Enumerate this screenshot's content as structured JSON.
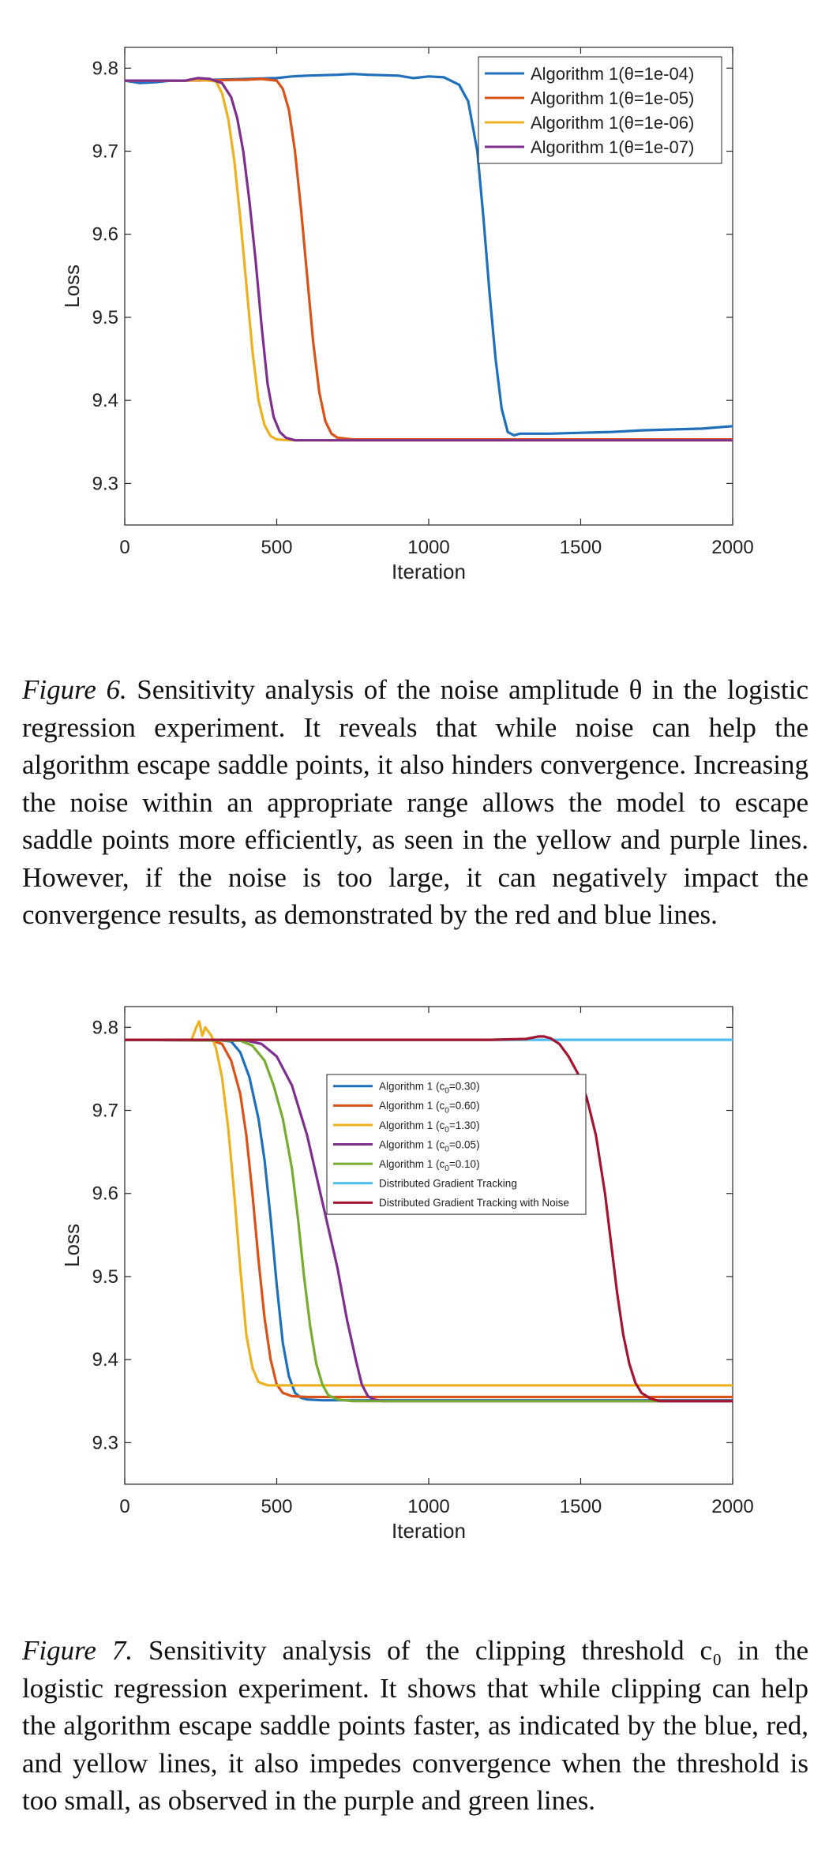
{
  "chart_data": [
    {
      "type": "line",
      "title": "",
      "xlabel": "Iteration",
      "ylabel": "Loss",
      "xlim": [
        0,
        2000
      ],
      "ylim": [
        9.25,
        9.825
      ],
      "xticks": [
        "0",
        "500",
        "1000",
        "1500",
        "2000"
      ],
      "yticks": [
        "9.3",
        "9.4",
        "9.5",
        "9.6",
        "9.7",
        "9.8"
      ],
      "grid": false,
      "legend_position": "top-right",
      "series": [
        {
          "name": "Algorithm 1(θ=1e-04)",
          "color": "#1f6fba",
          "x": [
            0,
            50,
            100,
            150,
            200,
            300,
            400,
            500,
            550,
            600,
            700,
            750,
            800,
            900,
            950,
            1000,
            1050,
            1100,
            1130,
            1160,
            1180,
            1200,
            1220,
            1240,
            1260,
            1280,
            1300,
            1400,
            1500,
            1600,
            1700,
            1800,
            1900,
            2000
          ],
          "y": [
            9.785,
            9.782,
            9.783,
            9.785,
            9.785,
            9.786,
            9.787,
            9.788,
            9.79,
            9.791,
            9.792,
            9.793,
            9.792,
            9.791,
            9.788,
            9.79,
            9.789,
            9.78,
            9.76,
            9.7,
            9.62,
            9.53,
            9.45,
            9.39,
            9.362,
            9.358,
            9.36,
            9.36,
            9.361,
            9.362,
            9.364,
            9.365,
            9.366,
            9.369
          ]
        },
        {
          "name": "Algorithm 1(θ=1e-05)",
          "color": "#d95319",
          "x": [
            0,
            200,
            400,
            450,
            500,
            520,
            540,
            560,
            580,
            600,
            620,
            640,
            660,
            680,
            700,
            750,
            800,
            1000,
            1500,
            2000
          ],
          "y": [
            9.785,
            9.785,
            9.786,
            9.787,
            9.785,
            9.775,
            9.75,
            9.7,
            9.63,
            9.55,
            9.47,
            9.41,
            9.375,
            9.36,
            9.355,
            9.353,
            9.353,
            9.353,
            9.353,
            9.353
          ]
        },
        {
          "name": "Algorithm 1(θ=1e-06)",
          "color": "#edb120",
          "x": [
            0,
            200,
            250,
            300,
            320,
            340,
            360,
            380,
            400,
            420,
            440,
            460,
            480,
            500,
            550,
            600,
            1000,
            2000
          ],
          "y": [
            9.785,
            9.785,
            9.786,
            9.784,
            9.77,
            9.74,
            9.69,
            9.62,
            9.54,
            9.46,
            9.4,
            9.37,
            9.357,
            9.353,
            9.352,
            9.352,
            9.352,
            9.352
          ]
        },
        {
          "name": "Algorithm 1(θ=1e-07)",
          "color": "#7e2f8e",
          "x": [
            0,
            200,
            240,
            280,
            320,
            350,
            370,
            390,
            410,
            430,
            450,
            470,
            490,
            510,
            530,
            560,
            600,
            1000,
            2000
          ],
          "y": [
            9.785,
            9.785,
            9.788,
            9.787,
            9.782,
            9.765,
            9.74,
            9.7,
            9.64,
            9.57,
            9.49,
            9.42,
            9.38,
            9.362,
            9.355,
            9.352,
            9.352,
            9.352,
            9.352
          ]
        }
      ]
    },
    {
      "type": "line",
      "title": "",
      "xlabel": "Iteration",
      "ylabel": "Loss",
      "xlim": [
        0,
        2000
      ],
      "ylim": [
        9.25,
        9.825
      ],
      "xticks": [
        "0",
        "500",
        "1000",
        "1500",
        "2000"
      ],
      "yticks": [
        "9.3",
        "9.4",
        "9.5",
        "9.6",
        "9.7",
        "9.8"
      ],
      "grid": false,
      "legend_position": "center",
      "series": [
        {
          "name": "Algorithm 1 (c0=0.30)",
          "name_base": "Algorithm 1 (c",
          "name_sub": "0",
          "name_tail": "=0.30)",
          "color": "#1f6fba",
          "x": [
            0,
            300,
            350,
            380,
            410,
            440,
            460,
            480,
            500,
            520,
            540,
            560,
            580,
            600,
            650,
            700,
            1000,
            2000
          ],
          "y": [
            9.785,
            9.785,
            9.783,
            9.77,
            9.74,
            9.69,
            9.64,
            9.57,
            9.49,
            9.42,
            9.38,
            9.36,
            9.354,
            9.352,
            9.351,
            9.351,
            9.351,
            9.351
          ]
        },
        {
          "name": "Algorithm 1 (c0=0.60)",
          "name_base": "Algorithm 1 (c",
          "name_sub": "0",
          "name_tail": "=0.60)",
          "color": "#d95319",
          "x": [
            0,
            280,
            320,
            350,
            380,
            400,
            420,
            440,
            460,
            480,
            500,
            520,
            550,
            600,
            1000,
            2000
          ],
          "y": [
            9.785,
            9.785,
            9.78,
            9.76,
            9.72,
            9.67,
            9.6,
            9.52,
            9.45,
            9.4,
            9.37,
            9.36,
            9.356,
            9.355,
            9.355,
            9.355
          ]
        },
        {
          "name": "Algorithm 1 (c0=1.30)",
          "name_base": "Algorithm 1 (c",
          "name_sub": "0",
          "name_tail": "=1.30)",
          "color": "#edb120",
          "x": [
            0,
            220,
            235,
            245,
            255,
            265,
            275,
            285,
            300,
            320,
            340,
            360,
            380,
            400,
            420,
            440,
            470,
            500,
            1000,
            2000
          ],
          "y": [
            9.785,
            9.785,
            9.8,
            9.807,
            9.79,
            9.8,
            9.795,
            9.79,
            9.775,
            9.74,
            9.68,
            9.6,
            9.51,
            9.43,
            9.39,
            9.373,
            9.369,
            9.369,
            9.369,
            9.369
          ]
        },
        {
          "name": "Algorithm 1 (c0=0.05)",
          "name_base": "Algorithm 1 (c",
          "name_sub": "0",
          "name_tail": "=0.05)",
          "color": "#7e2f8e",
          "x": [
            0,
            400,
            450,
            500,
            550,
            600,
            650,
            700,
            730,
            760,
            780,
            800,
            820,
            850,
            900,
            1000,
            2000
          ],
          "y": [
            9.785,
            9.784,
            9.78,
            9.765,
            9.73,
            9.67,
            9.59,
            9.51,
            9.45,
            9.4,
            9.37,
            9.356,
            9.352,
            9.35,
            9.35,
            9.35,
            9.35
          ]
        },
        {
          "name": "Algorithm 1 (c0=0.10)",
          "name_base": "Algorithm 1 (c",
          "name_sub": "0",
          "name_tail": "=0.10)",
          "color": "#77ac30",
          "x": [
            0,
            380,
            420,
            460,
            490,
            520,
            550,
            570,
            590,
            610,
            630,
            650,
            670,
            700,
            750,
            1000,
            2000
          ],
          "y": [
            9.785,
            9.784,
            9.778,
            9.76,
            9.73,
            9.69,
            9.63,
            9.57,
            9.5,
            9.44,
            9.395,
            9.37,
            9.357,
            9.352,
            9.35,
            9.35,
            9.35
          ]
        },
        {
          "name": "Distributed Gradient Tracking",
          "color": "#4dbeee",
          "x": [
            0,
            1000,
            2000
          ],
          "y": [
            9.785,
            9.785,
            9.785
          ]
        },
        {
          "name": "Distributed Gradient Tracking with Noise",
          "color": "#a2142f",
          "x": [
            0,
            1200,
            1320,
            1360,
            1380,
            1400,
            1430,
            1460,
            1490,
            1520,
            1550,
            1580,
            1600,
            1620,
            1640,
            1660,
            1680,
            1700,
            1730,
            1760,
            1800,
            2000
          ],
          "y": [
            9.785,
            9.785,
            9.786,
            9.789,
            9.789,
            9.787,
            9.78,
            9.765,
            9.745,
            9.715,
            9.67,
            9.6,
            9.54,
            9.48,
            9.43,
            9.395,
            9.372,
            9.36,
            9.353,
            9.35,
            9.35,
            9.35
          ]
        }
      ]
    }
  ],
  "captions": [
    {
      "lead": "Figure 6.",
      "text": " Sensitivity analysis of the noise amplitude θ in the logistic regression experiment. It reveals that while noise can help the algorithm escape saddle points, it also hinders convergence. Increasing the noise within an appropriate range allows the model to escape saddle points more efficiently, as seen in the yellow and purple lines. However, if the noise is too large, it can negatively impact the convergence results, as demonstrated by the red and blue lines."
    },
    {
      "lead": "Figure 7.",
      "text": " Sensitivity analysis of the clipping threshold c₀ in the logistic regression experiment. It shows that while clipping can help the algorithm escape saddle points faster, as indicated by the blue, red, and yellow lines, it also impedes convergence when the threshold is too small, as observed in the purple and green lines."
    }
  ]
}
